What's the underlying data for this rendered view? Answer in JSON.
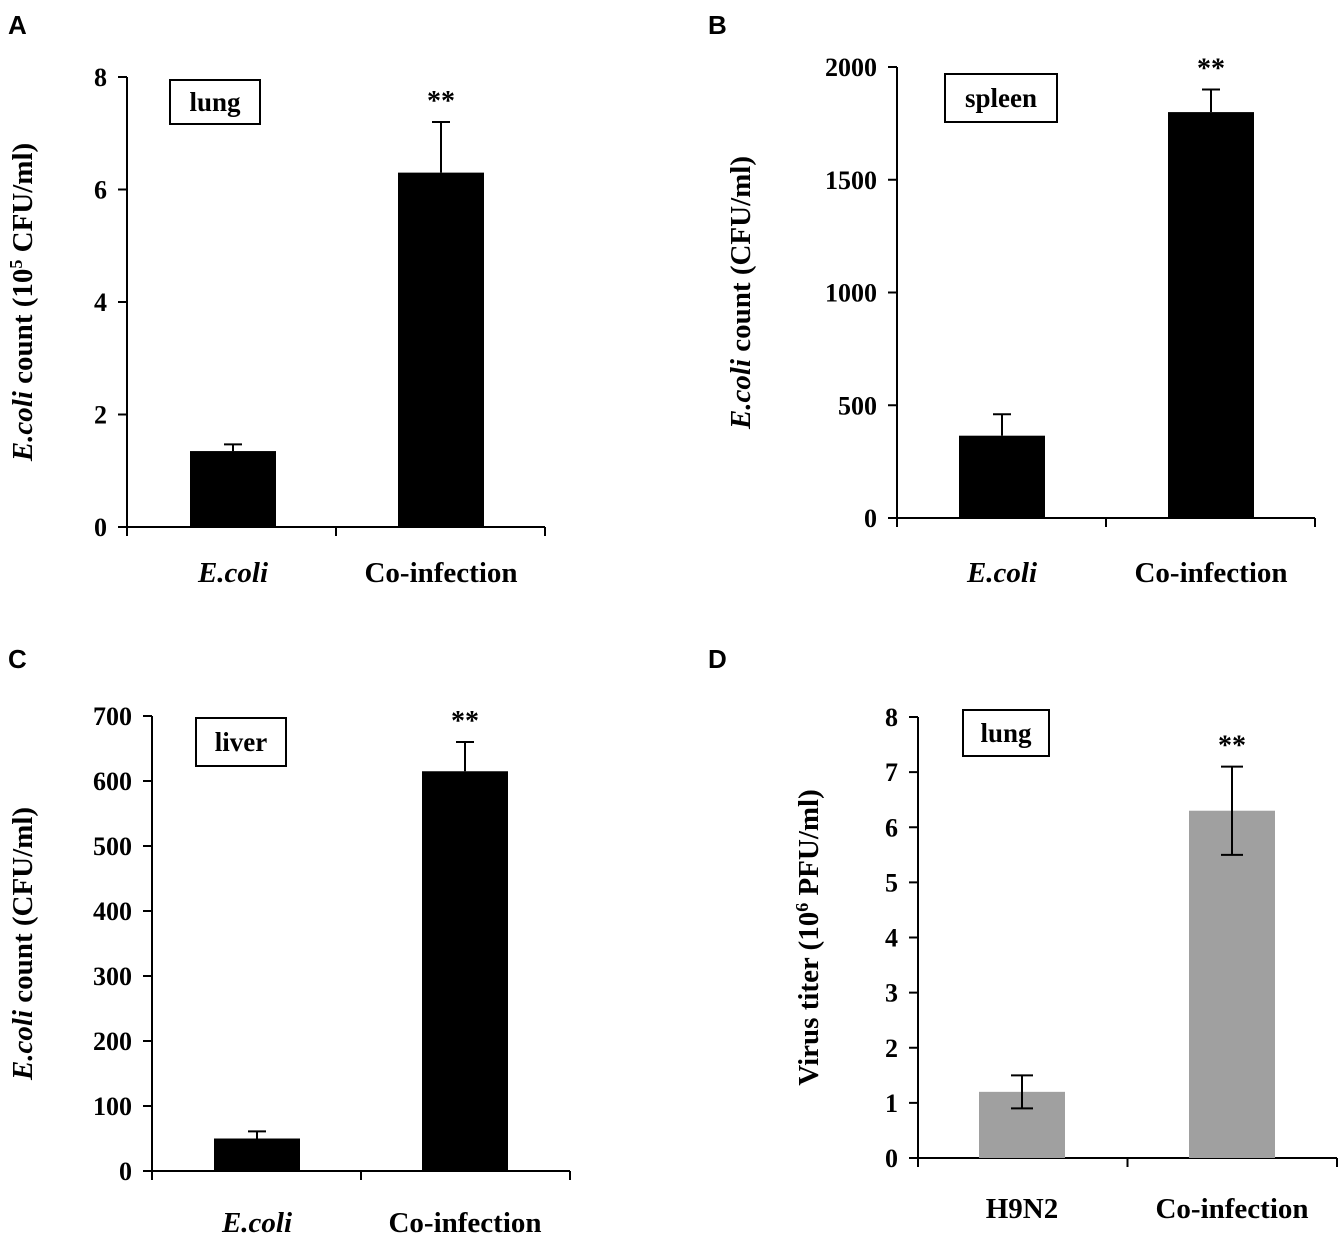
{
  "colors": {
    "black_bar": "#000000",
    "gray_bar": "#a0a0a0"
  },
  "chart_data": [
    {
      "panel": "A",
      "type": "bar",
      "organ": "lung",
      "categories": [
        "E.coli",
        "Co-infection"
      ],
      "category_italic": [
        true,
        false
      ],
      "values": [
        1.35,
        6.3
      ],
      "errors": [
        0.12,
        0.9
      ],
      "significance": [
        "",
        "**"
      ],
      "ylim": [
        0,
        8
      ],
      "yticks": [
        0,
        2,
        4,
        6,
        8
      ],
      "ylabel": {
        "italic": "E.coli",
        "pre": " count (10",
        "sup": "5",
        "post": " CFU/ml)"
      },
      "bar_color": "#000000"
    },
    {
      "panel": "B",
      "type": "bar",
      "organ": "spleen",
      "categories": [
        "E.coli",
        "Co-infection"
      ],
      "category_italic": [
        true,
        false
      ],
      "values": [
        365,
        1800
      ],
      "errors": [
        95,
        100
      ],
      "significance": [
        "",
        "**"
      ],
      "ylim": [
        0,
        2000
      ],
      "yticks": [
        0,
        500,
        1000,
        1500,
        2000
      ],
      "ylabel": {
        "italic": "E.coli",
        "pre": " count (CFU/ml)",
        "sup": "",
        "post": ""
      },
      "bar_color": "#000000"
    },
    {
      "panel": "C",
      "type": "bar",
      "organ": "liver",
      "categories": [
        "E.coli",
        "Co-infection"
      ],
      "category_italic": [
        true,
        false
      ],
      "values": [
        50,
        615
      ],
      "errors": [
        11,
        45
      ],
      "significance": [
        "",
        "**"
      ],
      "ylim": [
        0,
        700
      ],
      "yticks": [
        0,
        100,
        200,
        300,
        400,
        500,
        600,
        700
      ],
      "ylabel": {
        "italic": "E.coli",
        "pre": " count (CFU/ml)",
        "sup": "",
        "post": ""
      },
      "bar_color": "#000000"
    },
    {
      "panel": "D",
      "type": "bar",
      "organ": "lung",
      "categories": [
        "H9N2",
        "Co-infection"
      ],
      "category_italic": [
        false,
        false
      ],
      "values": [
        1.2,
        6.3
      ],
      "errors": [
        0.3,
        0.8
      ],
      "error_style": "both",
      "significance": [
        "",
        "**"
      ],
      "ylim": [
        0,
        8
      ],
      "yticks": [
        0,
        1,
        2,
        3,
        4,
        5,
        6,
        7,
        8
      ],
      "ylabel": {
        "italic": "",
        "pre": "Virus titer (10",
        "sup": "6",
        "post": " PFU/ml)"
      },
      "bar_color": "#a0a0a0"
    }
  ]
}
